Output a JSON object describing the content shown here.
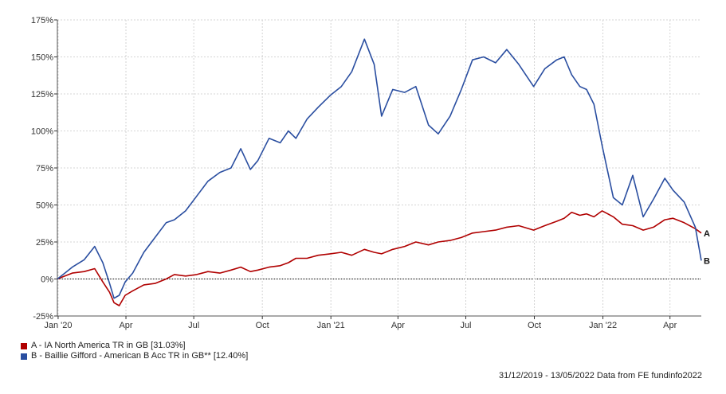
{
  "chart_data": {
    "type": "line",
    "y_ticks": [
      "175%",
      "150%",
      "125%",
      "100%",
      "75%",
      "50%",
      "25%",
      "0%",
      "-25%"
    ],
    "y_tick_values": [
      175,
      150,
      125,
      100,
      75,
      50,
      25,
      0,
      -25
    ],
    "ylim": [
      -25,
      175
    ],
    "x_ticks": [
      "Jan '20",
      "Apr",
      "Jul",
      "Oct",
      "Jan '21",
      "Apr",
      "Jul",
      "Oct",
      "Jan '22",
      "Apr"
    ],
    "x_tick_dates": [
      "2020-01-01",
      "2020-04-01",
      "2020-07-01",
      "2020-10-01",
      "2021-01-01",
      "2021-04-01",
      "2021-07-01",
      "2021-10-01",
      "2022-01-01",
      "2022-04-01"
    ],
    "xlim": [
      "2019-12-31",
      "2022-05-13"
    ],
    "grid": true,
    "series": [
      {
        "name": "A - IA North America TR in GB [31.03%]",
        "end_marker": "A",
        "color": "#b00000",
        "points": [
          [
            "2019-12-31",
            0
          ],
          [
            "2020-01-10",
            2
          ],
          [
            "2020-01-20",
            4
          ],
          [
            "2020-02-05",
            5
          ],
          [
            "2020-02-19",
            7
          ],
          [
            "2020-03-01",
            -2
          ],
          [
            "2020-03-10",
            -9
          ],
          [
            "2020-03-16",
            -16
          ],
          [
            "2020-03-23",
            -18
          ],
          [
            "2020-03-31",
            -11
          ],
          [
            "2020-04-10",
            -8
          ],
          [
            "2020-04-25",
            -4
          ],
          [
            "2020-05-10",
            -3
          ],
          [
            "2020-05-25",
            0
          ],
          [
            "2020-06-05",
            3
          ],
          [
            "2020-06-20",
            2
          ],
          [
            "2020-07-05",
            3
          ],
          [
            "2020-07-20",
            5
          ],
          [
            "2020-08-05",
            4
          ],
          [
            "2020-08-20",
            6
          ],
          [
            "2020-09-02",
            8
          ],
          [
            "2020-09-15",
            5
          ],
          [
            "2020-09-25",
            6
          ],
          [
            "2020-10-10",
            8
          ],
          [
            "2020-10-25",
            9
          ],
          [
            "2020-11-05",
            11
          ],
          [
            "2020-11-15",
            14
          ],
          [
            "2020-11-30",
            14
          ],
          [
            "2020-12-15",
            16
          ],
          [
            "2020-12-31",
            17
          ],
          [
            "2021-01-15",
            18
          ],
          [
            "2021-01-29",
            16
          ],
          [
            "2021-02-15",
            20
          ],
          [
            "2021-02-28",
            18
          ],
          [
            "2021-03-10",
            17
          ],
          [
            "2021-03-25",
            20
          ],
          [
            "2021-04-10",
            22
          ],
          [
            "2021-04-25",
            25
          ],
          [
            "2021-05-12",
            23
          ],
          [
            "2021-05-25",
            25
          ],
          [
            "2021-06-10",
            26
          ],
          [
            "2021-06-25",
            28
          ],
          [
            "2021-07-10",
            31
          ],
          [
            "2021-07-25",
            32
          ],
          [
            "2021-08-10",
            33
          ],
          [
            "2021-08-25",
            35
          ],
          [
            "2021-09-10",
            36
          ],
          [
            "2021-09-30",
            33
          ],
          [
            "2021-10-15",
            36
          ],
          [
            "2021-10-31",
            39
          ],
          [
            "2021-11-10",
            41
          ],
          [
            "2021-11-20",
            45
          ],
          [
            "2021-12-01",
            43
          ],
          [
            "2021-12-10",
            44
          ],
          [
            "2021-12-20",
            42
          ],
          [
            "2021-12-31",
            46
          ],
          [
            "2022-01-15",
            42
          ],
          [
            "2022-01-27",
            37
          ],
          [
            "2022-02-10",
            36
          ],
          [
            "2022-02-24",
            33
          ],
          [
            "2022-03-10",
            35
          ],
          [
            "2022-03-25",
            40
          ],
          [
            "2022-04-05",
            41
          ],
          [
            "2022-04-20",
            38
          ],
          [
            "2022-05-05",
            34
          ],
          [
            "2022-05-13",
            31.03
          ]
        ]
      },
      {
        "name": "B - Baillie Gifford - American B Acc TR in GB** [12.40%]",
        "end_marker": "B",
        "color": "#2a4ea0",
        "points": [
          [
            "2019-12-31",
            0
          ],
          [
            "2020-01-10",
            4
          ],
          [
            "2020-01-20",
            8
          ],
          [
            "2020-02-05",
            13
          ],
          [
            "2020-02-19",
            22
          ],
          [
            "2020-03-01",
            11
          ],
          [
            "2020-03-10",
            -3
          ],
          [
            "2020-03-16",
            -13
          ],
          [
            "2020-03-23",
            -11
          ],
          [
            "2020-03-31",
            -2
          ],
          [
            "2020-04-10",
            4
          ],
          [
            "2020-04-25",
            18
          ],
          [
            "2020-05-10",
            28
          ],
          [
            "2020-05-25",
            38
          ],
          [
            "2020-06-05",
            40
          ],
          [
            "2020-06-20",
            46
          ],
          [
            "2020-07-05",
            56
          ],
          [
            "2020-07-20",
            66
          ],
          [
            "2020-08-05",
            72
          ],
          [
            "2020-08-20",
            75
          ],
          [
            "2020-09-02",
            88
          ],
          [
            "2020-09-15",
            74
          ],
          [
            "2020-09-25",
            80
          ],
          [
            "2020-10-10",
            95
          ],
          [
            "2020-10-25",
            92
          ],
          [
            "2020-11-05",
            100
          ],
          [
            "2020-11-15",
            95
          ],
          [
            "2020-11-30",
            108
          ],
          [
            "2020-12-15",
            116
          ],
          [
            "2020-12-31",
            124
          ],
          [
            "2021-01-15",
            130
          ],
          [
            "2021-01-29",
            140
          ],
          [
            "2021-02-15",
            162
          ],
          [
            "2021-02-28",
            145
          ],
          [
            "2021-03-10",
            110
          ],
          [
            "2021-03-25",
            128
          ],
          [
            "2021-04-10",
            126
          ],
          [
            "2021-04-25",
            130
          ],
          [
            "2021-05-12",
            104
          ],
          [
            "2021-05-25",
            98
          ],
          [
            "2021-06-10",
            110
          ],
          [
            "2021-06-25",
            128
          ],
          [
            "2021-07-10",
            148
          ],
          [
            "2021-07-25",
            150
          ],
          [
            "2021-08-10",
            146
          ],
          [
            "2021-08-25",
            155
          ],
          [
            "2021-09-10",
            145
          ],
          [
            "2021-09-30",
            130
          ],
          [
            "2021-10-15",
            142
          ],
          [
            "2021-10-31",
            148
          ],
          [
            "2021-11-10",
            150
          ],
          [
            "2021-11-20",
            138
          ],
          [
            "2021-12-01",
            130
          ],
          [
            "2021-12-10",
            128
          ],
          [
            "2021-12-20",
            118
          ],
          [
            "2021-12-31",
            90
          ],
          [
            "2022-01-15",
            55
          ],
          [
            "2022-01-27",
            50
          ],
          [
            "2022-02-10",
            70
          ],
          [
            "2022-02-24",
            42
          ],
          [
            "2022-03-10",
            54
          ],
          [
            "2022-03-25",
            68
          ],
          [
            "2022-04-05",
            60
          ],
          [
            "2022-04-20",
            52
          ],
          [
            "2022-05-05",
            35
          ],
          [
            "2022-05-13",
            12.4
          ]
        ]
      }
    ],
    "footer": "31/12/2019 - 13/05/2022 Data from FE fundinfo2022"
  }
}
